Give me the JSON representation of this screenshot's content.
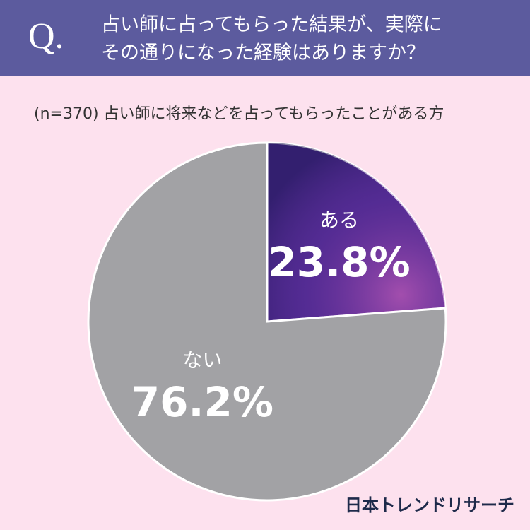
{
  "chart_data": {
    "type": "pie",
    "question_mark": "Q.",
    "title": [
      "占い師に占ってもらった結果が、実際に",
      "その通りになった経験はありますか？"
    ],
    "subtitle": "(n=370) 占い師に将来などを占ってもらったことがある方",
    "categories": [
      "ある",
      "ない"
    ],
    "values": [
      23.8,
      76.2
    ],
    "value_labels": [
      "23.8%",
      "76.2%"
    ],
    "colors": [
      "#4a2a8e",
      "#a2a2a5"
    ],
    "source": "日本トレンドリサーチ"
  }
}
